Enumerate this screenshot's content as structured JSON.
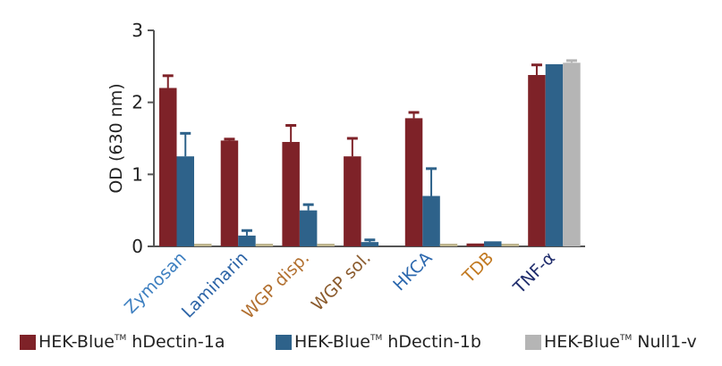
{
  "chart_data": {
    "type": "bar",
    "title": "",
    "xlabel": "",
    "ylabel": "OD (630 nm)",
    "ylim": [
      0,
      3
    ],
    "yticks": [
      "0",
      "1",
      "2",
      "3"
    ],
    "grid": false,
    "legend_placement": "bottom",
    "categories": [
      "Zymosan",
      "Laminarin",
      "WGP disp.",
      "WGP sol.",
      "HKCA",
      "TDB",
      "TNF-α"
    ],
    "category_colors": [
      "#3d7fc0",
      "#2b63a6",
      "#b27030",
      "#8a5a2c",
      "#2c68ae",
      "#c27a22",
      "#1e2b6b"
    ],
    "series": [
      {
        "name": "HEK-Blue™ hDectin-1a",
        "legend_main": "HEK-Blue",
        "legend_tm": "TM",
        "legend_suffix": " hDectin-1a",
        "color": "#7e2228",
        "values": [
          2.2,
          1.47,
          1.45,
          1.25,
          1.78,
          0.04,
          2.38
        ],
        "error_upper": [
          2.37,
          1.49,
          1.68,
          1.5,
          1.86,
          0.04,
          2.52
        ]
      },
      {
        "name": "HEK-Blue™ hDectin-1b",
        "legend_main": "HEK-Blue",
        "legend_tm": "TM",
        "legend_suffix": " hDectin-1b",
        "color": "#2e628a",
        "values": [
          1.25,
          0.15,
          0.5,
          0.06,
          0.7,
          0.07,
          2.53
        ],
        "error_upper": [
          1.57,
          0.22,
          0.58,
          0.09,
          1.08,
          0.08,
          2.54
        ]
      },
      {
        "name": "HEK-Blue™ Null1-v",
        "legend_main": "HEK-Blue",
        "legend_tm": "TM",
        "legend_suffix": " Null1-v",
        "color": "#b5b5b5",
        "alt_color": "#bdb48e",
        "values": [
          0.03,
          0.03,
          0.03,
          0.0,
          0.03,
          0.03,
          2.55
        ],
        "error_upper": [
          0.03,
          0.03,
          0.03,
          0.0,
          0.03,
          0.03,
          2.58
        ]
      }
    ]
  }
}
